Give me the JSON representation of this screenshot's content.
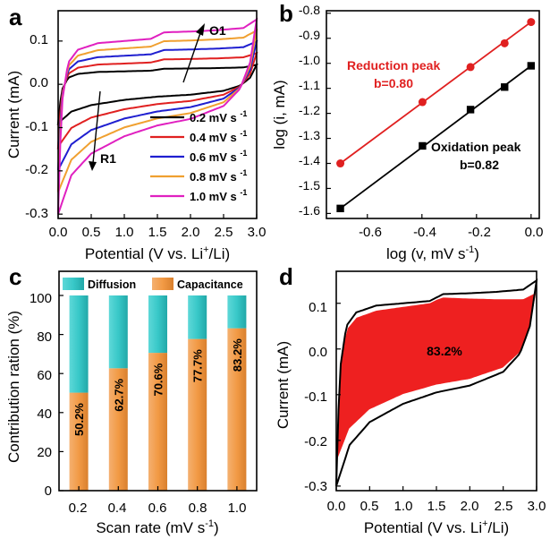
{
  "chart_data": [
    {
      "panel": "a",
      "type": "line",
      "xlabel": "Potential (V vs. Li",
      "xlabel_sup": "+",
      "xlabel_tail": "/Li)",
      "ylabel": "Current (mA)",
      "xlim": [
        0.0,
        3.0
      ],
      "ylim": [
        -0.31,
        0.17
      ],
      "xticks": [
        "0.0",
        "0.5",
        "1.0",
        "1.5",
        "2.0",
        "2.5",
        "3.0"
      ],
      "yticks": [
        "0.1",
        "0.0",
        "-0.1",
        "-0.2",
        "-0.3"
      ],
      "annotations": [
        {
          "label": "O1",
          "note": "arrow pointing up (increasing scan rate)"
        },
        {
          "label": "R1",
          "note": "arrow pointing down (increasing scan rate)"
        }
      ],
      "legend_unit": "mV s",
      "legend_sup": "-1",
      "series": [
        {
          "name": "0.2",
          "color": "#000000",
          "scale": 0.3
        },
        {
          "name": "0.4",
          "color": "#e02020",
          "scale": 0.48
        },
        {
          "name": "0.6",
          "color": "#1f1fd0",
          "scale": 0.66
        },
        {
          "name": "0.8",
          "color": "#f0a030",
          "scale": 0.83
        },
        {
          "name": "1.0",
          "color": "#e020c0",
          "scale": 1.0
        }
      ],
      "reference_cv_1mV": {
        "anodic": [
          [
            0.0,
            -0.3
          ],
          [
            0.05,
            -0.05
          ],
          [
            0.15,
            0.05
          ],
          [
            0.3,
            0.08
          ],
          [
            0.6,
            0.095
          ],
          [
            1.0,
            0.1
          ],
          [
            1.4,
            0.105
          ],
          [
            1.6,
            0.12
          ],
          [
            2.0,
            0.122
          ],
          [
            2.4,
            0.125
          ],
          [
            2.8,
            0.13
          ],
          [
            3.0,
            0.15
          ]
        ],
        "cathodic": [
          [
            3.0,
            0.15
          ],
          [
            2.9,
            0.05
          ],
          [
            2.75,
            -0.01
          ],
          [
            2.5,
            -0.05
          ],
          [
            2.0,
            -0.08
          ],
          [
            1.5,
            -0.095
          ],
          [
            1.0,
            -0.12
          ],
          [
            0.5,
            -0.16
          ],
          [
            0.2,
            -0.21
          ],
          [
            0.0,
            -0.3
          ]
        ]
      }
    },
    {
      "panel": "b",
      "type": "scatter",
      "xlabel": "log (v, mV s",
      "xlabel_sup": "-1",
      "xlabel_tail": ")",
      "ylabel": "log (i, mA)",
      "xlim": [
        -0.75,
        0.03
      ],
      "ylim": [
        -1.62,
        -0.79
      ],
      "xticks": [
        "-0.6",
        "-0.4",
        "-0.2",
        "0.0"
      ],
      "yticks": [
        "-0.8",
        "-0.9",
        "-1.0",
        "-1.1",
        "-1.2",
        "-1.3",
        "-1.4",
        "-1.5",
        "-1.6"
      ],
      "series": [
        {
          "name": "Reduction peak",
          "fit_label": "b=0.80",
          "color": "#e02020",
          "marker": "circle",
          "x": [
            -0.699,
            -0.398,
            -0.222,
            -0.097,
            0.0
          ],
          "y": [
            -1.4,
            -1.155,
            -1.015,
            -0.92,
            -0.835
          ]
        },
        {
          "name": "Oxidation peak",
          "fit_label": "b=0.82",
          "color": "#000000",
          "marker": "square",
          "x": [
            -0.699,
            -0.398,
            -0.222,
            -0.097,
            0.0
          ],
          "y": [
            -1.58,
            -1.33,
            -1.185,
            -1.095,
            -1.01
          ]
        }
      ]
    },
    {
      "panel": "c",
      "type": "bar",
      "xlabel": "Scan rate (mV s",
      "xlabel_sup": "-1",
      "xlabel_tail": ")",
      "ylabel": "Contribution ration (%)",
      "ylim": [
        0,
        100
      ],
      "yticks": [
        "0",
        "20",
        "40",
        "60",
        "80",
        "100"
      ],
      "categories": [
        "0.2",
        "0.4",
        "0.6",
        "0.8",
        "1.0"
      ],
      "series": [
        {
          "name": "Capacitance",
          "color": "#f0a050",
          "values": [
            50.2,
            62.7,
            70.6,
            77.7,
            83.2
          ]
        },
        {
          "name": "Diffusion",
          "color": "#38c8c8",
          "values": [
            49.8,
            37.3,
            29.4,
            22.3,
            16.8
          ]
        }
      ],
      "bar_labels": [
        "50.2%",
        "62.7%",
        "70.6%",
        "77.7%",
        "83.2%"
      ]
    },
    {
      "panel": "d",
      "type": "area",
      "xlabel": "Potential (V vs. Li",
      "xlabel_sup": "+",
      "xlabel_tail": "/Li)",
      "ylabel": "Current (mA)",
      "xlim": [
        0.0,
        3.0
      ],
      "ylim": [
        -0.31,
        0.17
      ],
      "xticks": [
        "0.0",
        "0.5",
        "1.0",
        "1.5",
        "2.0",
        "2.5",
        "3.0"
      ],
      "yticks": [
        "0.1",
        "0.0",
        "-0.1",
        "-0.2",
        "-0.3"
      ],
      "fill_color": "#ee2020",
      "annotation": "83.2%",
      "capacitive_fraction": 0.832
    }
  ],
  "panel_labels": [
    "a",
    "b",
    "c",
    "d"
  ]
}
